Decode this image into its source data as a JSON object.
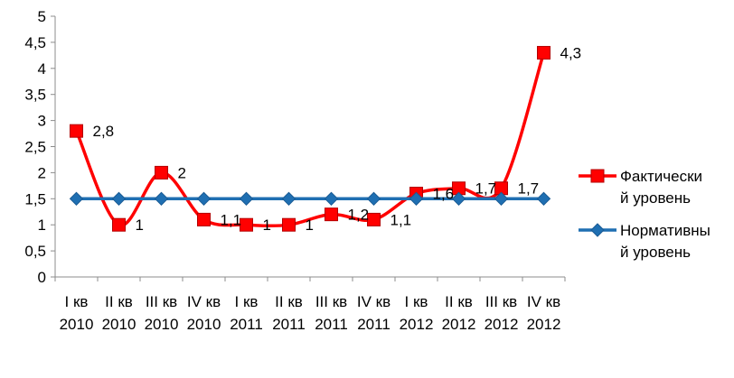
{
  "chart_data": {
    "type": "line",
    "title": "",
    "xlabel": "",
    "ylabel": "",
    "ylim": [
      0,
      5
    ],
    "yticks": [
      "0",
      "0,5",
      "1",
      "1,5",
      "2",
      "2,5",
      "3",
      "3,5",
      "4",
      "4,5",
      "5"
    ],
    "categories": [
      [
        "I кв",
        "2010"
      ],
      [
        "II кв",
        "2010"
      ],
      [
        "III кв",
        "2010"
      ],
      [
        "IV кв",
        "2010"
      ],
      [
        "I кв",
        "2011"
      ],
      [
        "II кв",
        "2011"
      ],
      [
        "III кв",
        "2011"
      ],
      [
        "IV кв",
        "2011"
      ],
      [
        "I кв",
        "2012"
      ],
      [
        "II кв",
        "2012"
      ],
      [
        "III кв",
        "2012"
      ],
      [
        "IV кв",
        "2012"
      ]
    ],
    "grid": false,
    "legend_position": "right",
    "series": [
      {
        "name_lines": [
          "Фактически",
          "й уровень"
        ],
        "color": "#ff0000",
        "marker": "square",
        "smooth": true,
        "values": [
          2.8,
          1,
          2,
          1.1,
          1,
          1,
          1.2,
          1.1,
          1.6,
          1.7,
          1.7,
          4.3
        ],
        "labels": [
          "2,8",
          "1",
          "2",
          "1,1",
          "1",
          "1",
          "1,2",
          "1,1",
          "1,6",
          "1,7",
          "1,7",
          "4,3"
        ]
      },
      {
        "name_lines": [
          "Нормативны",
          "й уровень"
        ],
        "color": "#1f6fb2",
        "marker": "diamond",
        "smooth": false,
        "values": [
          1.5,
          1.5,
          1.5,
          1.5,
          1.5,
          1.5,
          1.5,
          1.5,
          1.5,
          1.5,
          1.5,
          1.5
        ]
      }
    ]
  }
}
